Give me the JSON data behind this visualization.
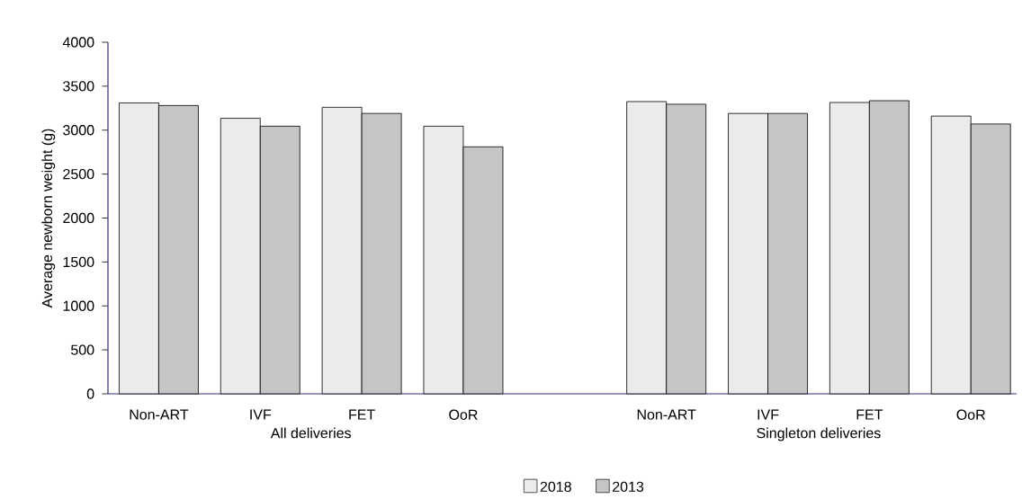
{
  "chart_data": {
    "type": "bar",
    "ylabel": "Average newborn weight (g)",
    "categories": [
      "Non-ART",
      "IVF",
      "FET",
      "OoR",
      null,
      "Non-ART",
      "IVF",
      "FET",
      "OoR"
    ],
    "series": [
      {
        "name": "2018",
        "color": "#ebebeb",
        "values": [
          3310,
          3135,
          3260,
          3045,
          null,
          3325,
          3190,
          3315,
          3160
        ]
      },
      {
        "name": "2013",
        "color": "#c4c5c4",
        "values": [
          3280,
          3045,
          3190,
          2810,
          null,
          3295,
          3190,
          3335,
          3070
        ]
      }
    ],
    "ylim": [
      0,
      4000
    ],
    "yticks": [
      0,
      500,
      1000,
      1500,
      2000,
      2500,
      3000,
      3500,
      4000
    ],
    "legend": "bottom",
    "annotations": [
      "All deliveries",
      "Singleton deliveries"
    ]
  }
}
